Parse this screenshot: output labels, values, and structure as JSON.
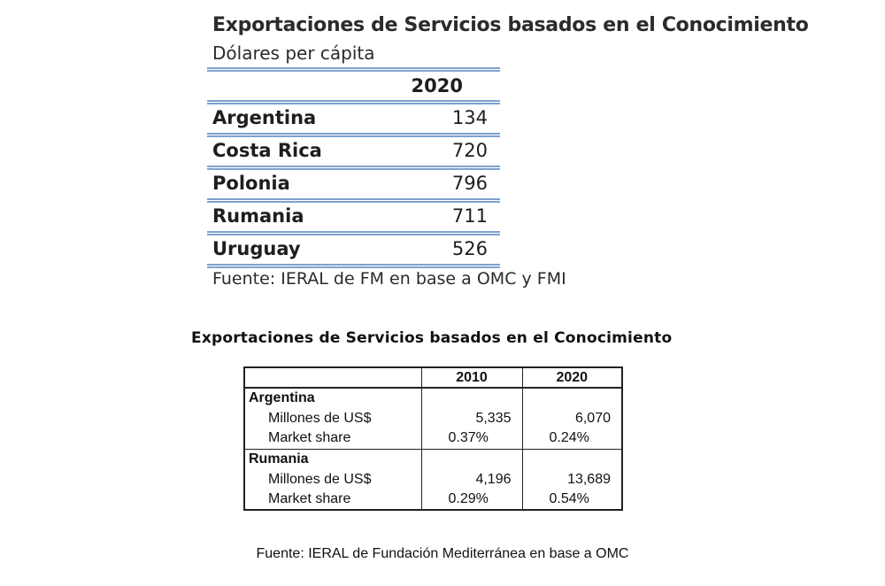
{
  "table1": {
    "title": "Exportaciones de Servicios basados en el Conocimiento",
    "subtitle": "Dólares per cápita",
    "year_header": "2020",
    "rows": [
      {
        "country": "Argentina",
        "value": "134"
      },
      {
        "country": "Costa Rica",
        "value": "720"
      },
      {
        "country": "Polonia",
        "value": "796"
      },
      {
        "country": "Rumania",
        "value": "711"
      },
      {
        "country": "Uruguay",
        "value": "526"
      }
    ],
    "source": "Fuente: IERAL de FM en base a OMC y FMI",
    "rule_color": "#7fa2cf"
  },
  "table2": {
    "title": "Exportaciones de Servicios basados en el Conocimiento",
    "headers": [
      "",
      "2010",
      "2020"
    ],
    "groups": [
      {
        "country": "Argentina",
        "rows": [
          {
            "label": "Millones de US$",
            "y2010": "5,335",
            "y2020": "6,070"
          },
          {
            "label": "Market share",
            "y2010": "0.37%",
            "y2020": "0.24%"
          }
        ]
      },
      {
        "country": "Rumania",
        "rows": [
          {
            "label": "Millones de US$",
            "y2010": "4,196",
            "y2020": "13,689"
          },
          {
            "label": "Market share",
            "y2010": "0.29%",
            "y2020": "0.54%"
          }
        ]
      }
    ],
    "source": "Fuente: IERAL de Fundación Mediterránea en base a OMC"
  }
}
